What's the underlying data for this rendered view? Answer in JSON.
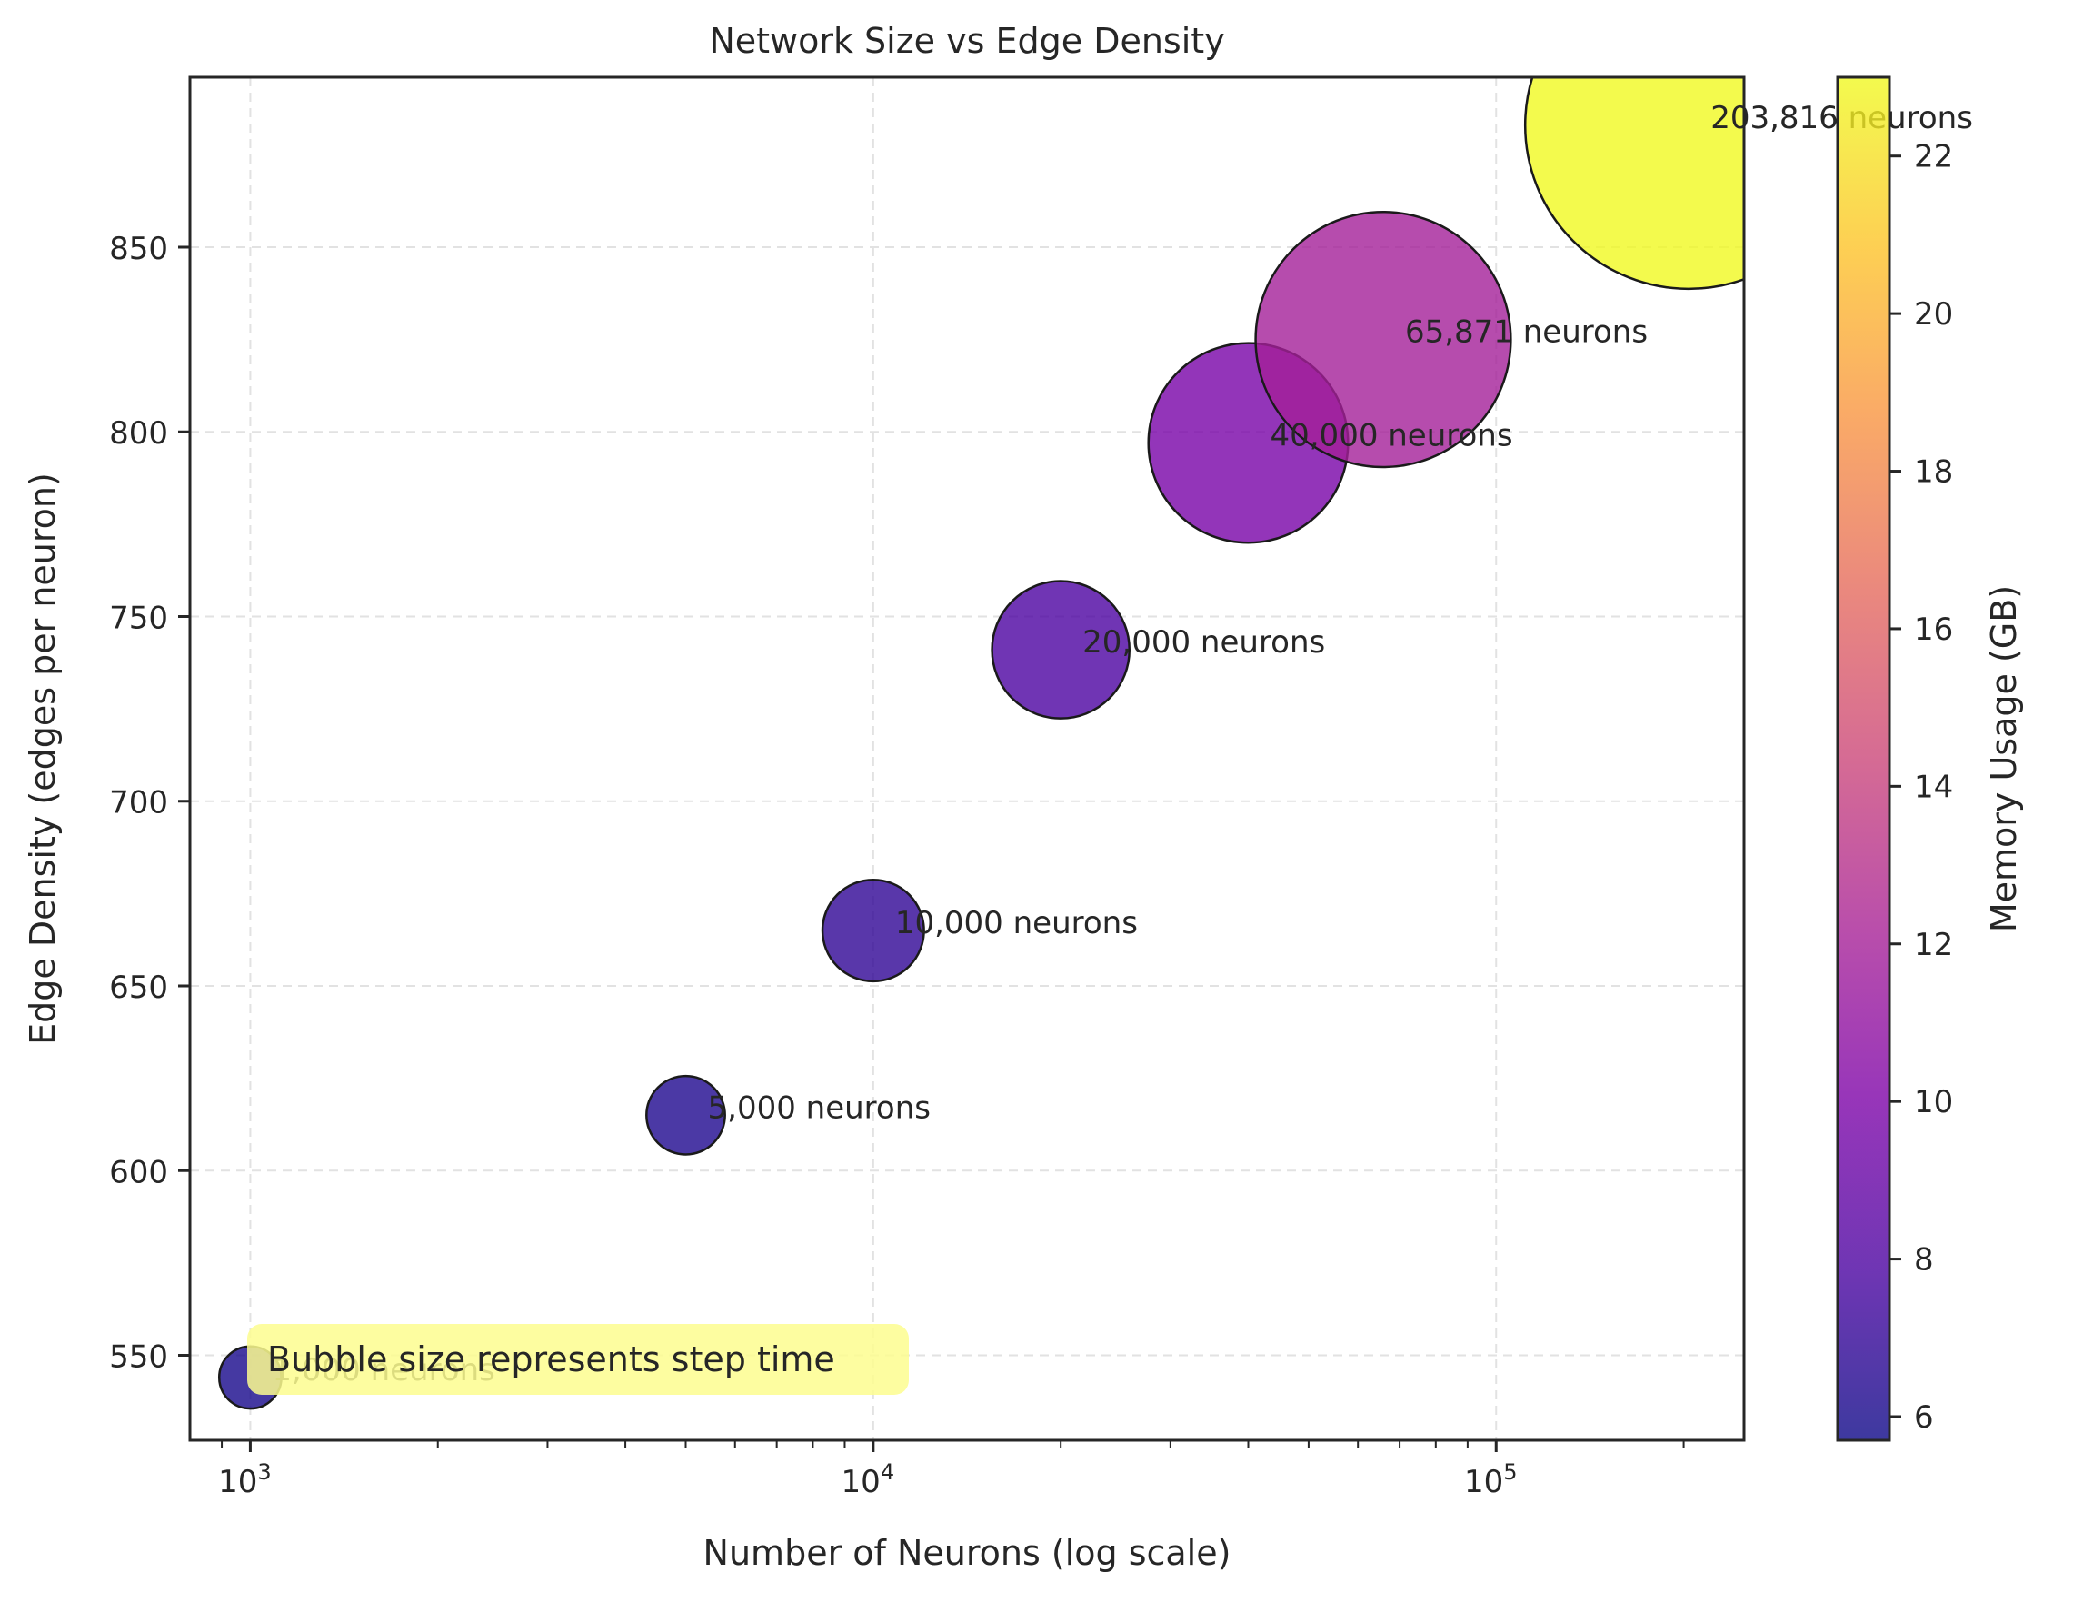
{
  "chart_data": {
    "type": "scatter",
    "title": "Network Size vs Edge Density",
    "xlabel": "Number of Neurons (log scale)",
    "ylabel": "Edge Density (edges per neuron)",
    "x_scale": "log",
    "xlim": [
      800,
      250000
    ],
    "ylim": [
      527,
      896
    ],
    "x_ticks": [
      {
        "value": 1000,
        "base": "10",
        "exp": "3"
      },
      {
        "value": 10000,
        "base": "10",
        "exp": "4"
      },
      {
        "value": 100000,
        "base": "10",
        "exp": "5"
      }
    ],
    "y_ticks": [
      550,
      600,
      650,
      700,
      750,
      800,
      850
    ],
    "grid": true,
    "points": [
      {
        "x": 1000,
        "y": 544,
        "memory_gb": 6.0,
        "label": "1,000 neurons",
        "size_rel": 0.19
      },
      {
        "x": 5000,
        "y": 615,
        "memory_gb": 6.3,
        "label": "5,000 neurons",
        "size_rel": 0.24
      },
      {
        "x": 10000,
        "y": 665,
        "memory_gb": 6.9,
        "label": "10,000 neurons",
        "size_rel": 0.31
      },
      {
        "x": 20000,
        "y": 741,
        "memory_gb": 7.9,
        "label": "20,000 neurons",
        "size_rel": 0.42
      },
      {
        "x": 40000,
        "y": 797,
        "memory_gb": 9.8,
        "label": "40,000 neurons",
        "size_rel": 0.61
      },
      {
        "x": 65871,
        "y": 825,
        "memory_gb": 12.0,
        "label": "65,871 neurons",
        "size_rel": 0.78
      },
      {
        "x": 203816,
        "y": 883,
        "memory_gb": 23.0,
        "label": "203,816 neurons",
        "size_rel": 1.0
      }
    ],
    "colorbar": {
      "label": "Memory Usage (GB)",
      "colormap": "plasma",
      "range": [
        5.7,
        23.0
      ],
      "ticks": [
        6,
        8,
        10,
        12,
        14,
        16,
        18,
        20,
        22
      ]
    },
    "annotation": "Bubble size represents step time",
    "colors": {
      "annotation_bg": "#fdfd8f",
      "bubble_edge": "#1a1a1a",
      "grid": "#e2e2e2"
    }
  }
}
